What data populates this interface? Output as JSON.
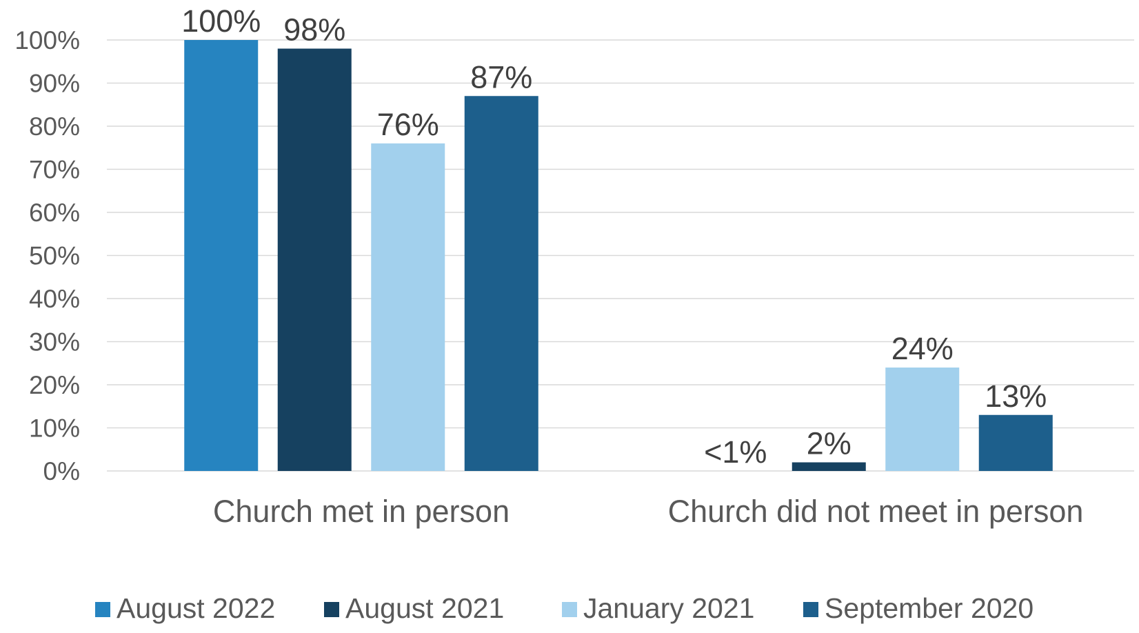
{
  "chart_data": {
    "type": "bar",
    "title": "",
    "xlabel": "",
    "ylabel": "",
    "ylim": [
      0,
      100
    ],
    "ytick_values": [
      0,
      10,
      20,
      30,
      40,
      50,
      60,
      70,
      80,
      90,
      100
    ],
    "ytick_labels": [
      "0%",
      "10%",
      "20%",
      "30%",
      "40%",
      "50%",
      "60%",
      "70%",
      "80%",
      "90%",
      "100%"
    ],
    "grid": true,
    "legend_position": "bottom",
    "categories": [
      "Church met in person",
      "Church did not meet in person"
    ],
    "series": [
      {
        "name": "August 2022",
        "color": "#2684c0",
        "values": [
          100,
          0
        ],
        "labels": [
          "100%",
          "<1%"
        ]
      },
      {
        "name": "August 2021",
        "color": "#164160",
        "values": [
          98,
          2
        ],
        "labels": [
          "98%",
          "2%"
        ]
      },
      {
        "name": "January 2021",
        "color": "#a2d0ed",
        "values": [
          76,
          24
        ],
        "labels": [
          "76%",
          "24%"
        ]
      },
      {
        "name": "September 2020",
        "color": "#1d5f8c",
        "values": [
          87,
          13
        ],
        "labels": [
          "87%",
          "13%"
        ]
      }
    ]
  }
}
